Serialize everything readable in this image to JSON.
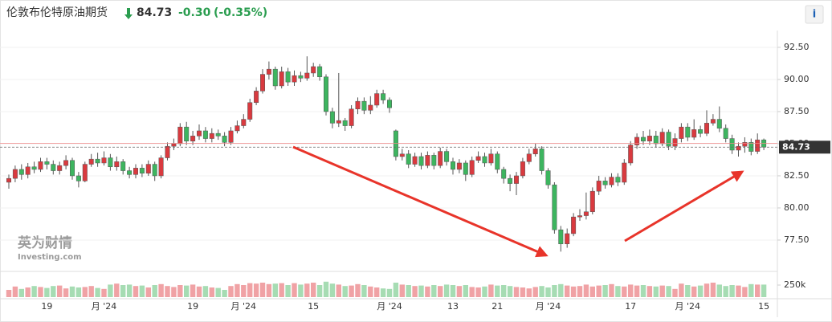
{
  "header": {
    "title": "伦敦布伦特原油期货",
    "price": "84.73",
    "change": "-0.30",
    "change_pct": "(-0.35%)",
    "info": "i"
  },
  "watermark": {
    "brand": "英为财情",
    "site": "Investing.com"
  },
  "chart_data": {
    "type": "candlestick",
    "up_color": "#d93a3f",
    "down_color": "#3db55f",
    "up_volume_color": "#f0a2a5",
    "down_volume_color": "#a6dcb3",
    "previous_close": 85.03,
    "ylim": [
      75.06,
      93.81
    ],
    "yticks": [
      {
        "value": 77.5,
        "label": "77.50"
      },
      {
        "value": 80,
        "label": "80.00"
      },
      {
        "value": 82.5,
        "label": "82.50"
      },
      {
        "value": 85,
        "label": "85.00"
      },
      {
        "value": 87.5,
        "label": "87.50"
      },
      {
        "value": 90,
        "label": "90.00"
      },
      {
        "value": 92.5,
        "label": "92.50"
      }
    ],
    "volume_ylim": [
      0,
      500000
    ],
    "volume_yticks": [
      {
        "value": 250000,
        "label": "250k"
      }
    ],
    "grid": true,
    "categories": [
      null,
      null,
      null,
      null,
      null,
      null,
      "19",
      null,
      null,
      null,
      null,
      null,
      null,
      null,
      null,
      "月 '24",
      null,
      null,
      null,
      null,
      null,
      null,
      null,
      null,
      null,
      null,
      null,
      null,
      null,
      "19",
      null,
      null,
      null,
      null,
      null,
      null,
      null,
      "月 '24",
      null,
      null,
      null,
      null,
      null,
      null,
      null,
      null,
      null,
      null,
      "15",
      null,
      null,
      null,
      null,
      null,
      null,
      null,
      null,
      null,
      null,
      null,
      "月 '24",
      null,
      null,
      null,
      null,
      null,
      null,
      null,
      null,
      null,
      "13",
      null,
      null,
      null,
      null,
      null,
      null,
      "21",
      null,
      null,
      null,
      null,
      null,
      null,
      null,
      "月 '24",
      null,
      null,
      null,
      null,
      null,
      null,
      null,
      null,
      null,
      null,
      null,
      null,
      "17",
      null,
      null,
      null,
      null,
      null,
      null,
      null,
      null,
      "月 '24",
      null,
      null,
      null,
      null,
      null,
      null,
      null,
      null,
      null,
      null,
      null,
      "15"
    ],
    "open": [
      82.0,
      82.3,
      83.0,
      82.6,
      83.2,
      83.0,
      83.6,
      83.4,
      82.9,
      83.3,
      83.7,
      82.5,
      82.1,
      83.4,
      83.8,
      83.5,
      83.9,
      83.2,
      83.6,
      82.9,
      82.6,
      83.1,
      82.7,
      83.4,
      82.5,
      83.9,
      84.8,
      85.0,
      86.3,
      85.2,
      85.6,
      86.0,
      85.4,
      85.8,
      85.6,
      85.1,
      86.0,
      86.4,
      86.9,
      88.2,
      89.1,
      90.4,
      90.8,
      89.5,
      90.6,
      89.8,
      90.3,
      90.1,
      90.5,
      91.0,
      90.2,
      87.5,
      86.6,
      86.8,
      86.4,
      87.7,
      88.3,
      87.6,
      88.0,
      88.9,
      88.4,
      86.0,
      84.0,
      84.2,
      83.4,
      84.0,
      83.3,
      84.1,
      83.3,
      84.4,
      83.6,
      83.0,
      83.5,
      82.6,
      83.7,
      84.0,
      83.5,
      84.2,
      83.0,
      82.3,
      81.9,
      82.5,
      83.6,
      84.2,
      84.6,
      82.9,
      81.8,
      78.3,
      77.2,
      78.0,
      79.3,
      79.4,
      79.7,
      81.3,
      82.1,
      81.8,
      82.4,
      82.0,
      83.5,
      84.9,
      85.5,
      85.2,
      85.6,
      85.0,
      85.9,
      84.8,
      85.4,
      86.3,
      85.5,
      86.1,
      85.8,
      86.6,
      86.9,
      86.2,
      85.4,
      84.5,
      84.8,
      85.1,
      84.4,
      85.3
    ],
    "high": [
      82.6,
      83.3,
      83.4,
      83.5,
      83.6,
      83.9,
      83.9,
      83.7,
      83.6,
      84.1,
      83.9,
      82.8,
      83.6,
      84.2,
      84.3,
      84.4,
      84.2,
      84.0,
      83.8,
      83.2,
      83.4,
      83.4,
      83.7,
      83.6,
      84.1,
      85.1,
      85.4,
      86.6,
      86.7,
      86.0,
      86.5,
      86.3,
      86.2,
      86.1,
      85.9,
      86.3,
      86.8,
      87.3,
      88.5,
      89.4,
      90.8,
      91.4,
      91.0,
      91.0,
      90.9,
      90.7,
      90.6,
      91.8,
      91.3,
      91.2,
      90.4,
      87.8,
      90.5,
      87.0,
      88.0,
      88.6,
      88.6,
      88.7,
      89.2,
      89.2,
      88.6,
      86.1,
      84.6,
      84.5,
      84.3,
      84.3,
      84.4,
      84.3,
      84.7,
      84.6,
      83.9,
      83.8,
      83.7,
      84.0,
      84.4,
      84.3,
      84.6,
      84.4,
      83.2,
      82.6,
      82.8,
      83.9,
      84.6,
      85.0,
      84.8,
      83.1,
      82.0,
      78.6,
      78.4,
      79.6,
      79.9,
      81.2,
      81.6,
      82.5,
      82.4,
      82.7,
      82.7,
      83.8,
      85.2,
      85.8,
      86.0,
      86.1,
      86.0,
      86.2,
      86.1,
      85.8,
      86.6,
      86.6,
      86.9,
      86.4,
      87.6,
      87.3,
      87.9,
      86.5,
      85.7,
      85.1,
      85.5,
      85.4,
      85.8,
      85.4
    ],
    "low": [
      81.5,
      82.0,
      82.2,
      82.3,
      82.7,
      82.8,
      83.0,
      82.6,
      82.6,
      83.0,
      82.2,
      81.6,
      82.0,
      83.2,
      83.2,
      83.3,
      82.9,
      82.9,
      82.6,
      82.3,
      82.3,
      82.4,
      82.5,
      82.1,
      82.3,
      83.7,
      84.5,
      84.8,
      84.9,
      84.9,
      85.3,
      85.1,
      85.1,
      85.3,
      84.8,
      84.9,
      85.8,
      86.2,
      86.7,
      88.0,
      88.9,
      90.0,
      89.2,
      89.3,
      89.5,
      89.5,
      89.8,
      89.9,
      90.2,
      89.9,
      87.2,
      86.2,
      86.3,
      86.0,
      86.2,
      87.3,
      87.3,
      87.3,
      87.8,
      88.1,
      87.4,
      83.7,
      83.7,
      83.1,
      83.2,
      83.0,
      83.1,
      83.0,
      83.1,
      83.3,
      82.6,
      82.7,
      82.1,
      82.4,
      83.5,
      83.2,
      83.3,
      82.7,
      81.9,
      81.3,
      81.0,
      82.3,
      83.4,
      84.0,
      82.6,
      81.5,
      78.0,
      76.6,
      76.9,
      77.8,
      79.0,
      79.1,
      79.5,
      81.0,
      81.5,
      81.6,
      81.7,
      81.8,
      83.3,
      84.6,
      84.9,
      84.9,
      84.7,
      84.8,
      84.5,
      84.5,
      85.1,
      85.2,
      85.3,
      85.5,
      85.6,
      86.4,
      85.9,
      85.1,
      84.2,
      84.0,
      84.3,
      84.1,
      84.2,
      84.5
    ],
    "close": [
      82.3,
      83.0,
      82.6,
      83.2,
      83.0,
      83.6,
      83.4,
      82.9,
      83.3,
      83.7,
      82.5,
      82.1,
      83.4,
      83.8,
      83.5,
      83.9,
      83.2,
      83.6,
      82.9,
      82.6,
      83.1,
      82.7,
      83.4,
      82.5,
      83.9,
      84.8,
      85.0,
      86.3,
      85.2,
      85.6,
      86.0,
      85.4,
      85.8,
      85.6,
      85.1,
      86.0,
      86.4,
      86.9,
      88.2,
      89.1,
      90.4,
      90.8,
      89.5,
      90.6,
      89.8,
      90.3,
      90.1,
      90.5,
      91.0,
      90.2,
      87.5,
      86.6,
      86.8,
      86.4,
      87.7,
      88.3,
      87.6,
      88.0,
      88.9,
      88.4,
      87.8,
      84.0,
      84.2,
      83.4,
      84.0,
      83.3,
      84.1,
      83.3,
      84.4,
      83.6,
      83.0,
      83.5,
      82.6,
      83.7,
      84.0,
      83.5,
      84.2,
      83.0,
      82.3,
      81.9,
      82.5,
      83.6,
      84.2,
      84.6,
      82.9,
      81.8,
      78.3,
      77.2,
      78.0,
      79.3,
      79.4,
      79.7,
      81.3,
      82.1,
      81.8,
      82.4,
      82.0,
      83.5,
      84.9,
      85.5,
      85.2,
      85.6,
      85.0,
      85.9,
      84.8,
      85.4,
      86.3,
      85.5,
      86.1,
      85.8,
      86.6,
      86.9,
      86.2,
      85.4,
      84.5,
      84.8,
      85.1,
      84.4,
      85.3,
      84.73
    ],
    "volume": [
      150000,
      220000,
      170000,
      200000,
      230000,
      210000,
      190000,
      230000,
      240000,
      180000,
      220000,
      200000,
      210000,
      230000,
      190000,
      170000,
      260000,
      280000,
      250000,
      260000,
      230000,
      240000,
      200000,
      250000,
      270000,
      230000,
      210000,
      250000,
      240000,
      260000,
      220000,
      230000,
      200000,
      190000,
      150000,
      230000,
      270000,
      250000,
      290000,
      280000,
      300000,
      270000,
      280000,
      290000,
      250000,
      290000,
      260000,
      280000,
      300000,
      250000,
      320000,
      280000,
      260000,
      230000,
      240000,
      270000,
      250000,
      220000,
      200000,
      180000,
      170000,
      300000,
      260000,
      250000,
      230000,
      240000,
      220000,
      250000,
      230000,
      260000,
      250000,
      230000,
      250000,
      210000,
      200000,
      220000,
      260000,
      240000,
      250000,
      230000,
      210000,
      200000,
      180000,
      210000,
      230000,
      200000,
      250000,
      270000,
      240000,
      220000,
      230000,
      260000,
      220000,
      240000,
      250000,
      270000,
      230000,
      220000,
      260000,
      240000,
      250000,
      230000,
      220000,
      240000,
      230000,
      170000,
      280000,
      250000,
      220000,
      240000,
      280000,
      300000,
      260000,
      230000,
      250000,
      240000,
      210000,
      270000,
      260000,
      260000
    ]
  }
}
